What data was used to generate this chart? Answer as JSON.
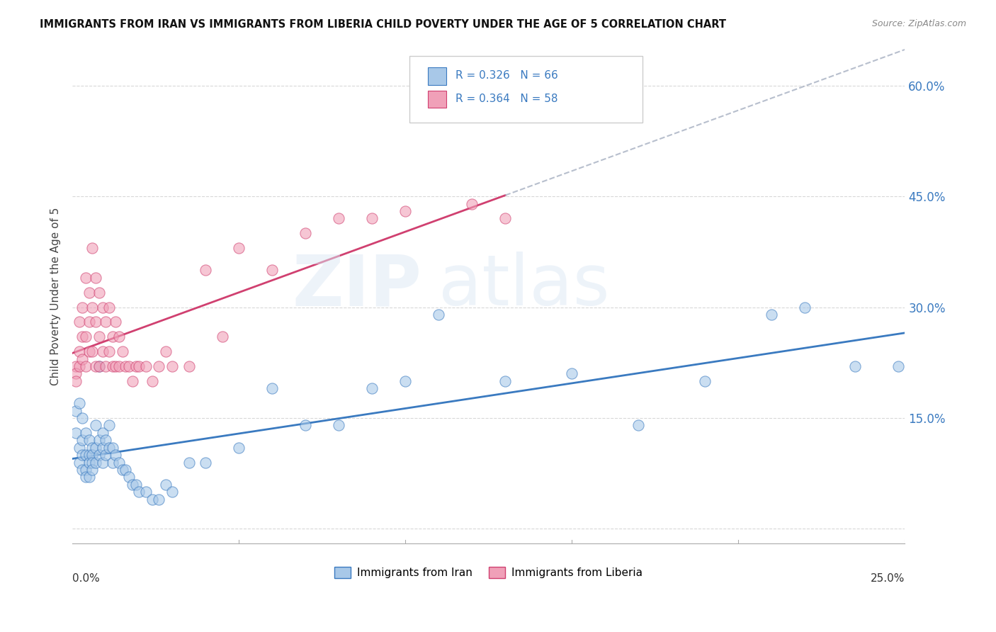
{
  "title": "IMMIGRANTS FROM IRAN VS IMMIGRANTS FROM LIBERIA CHILD POVERTY UNDER THE AGE OF 5 CORRELATION CHART",
  "source": "Source: ZipAtlas.com",
  "ylabel": "Child Poverty Under the Age of 5",
  "y_ticks": [
    0.0,
    0.15,
    0.3,
    0.45,
    0.6
  ],
  "y_tick_labels": [
    "",
    "15.0%",
    "30.0%",
    "45.0%",
    "60.0%"
  ],
  "x_lim": [
    0.0,
    0.25
  ],
  "y_lim": [
    -0.02,
    0.65
  ],
  "legend_iran": "Immigrants from Iran",
  "legend_liberia": "Immigrants from Liberia",
  "R_iran": "0.326",
  "N_iran": "66",
  "R_liberia": "0.364",
  "N_liberia": "58",
  "color_iran": "#a8c8e8",
  "color_liberia": "#f0a0b8",
  "color_iran_line": "#3a7ac0",
  "color_liberia_line": "#d04070",
  "color_dashed": "#b0b8c8",
  "watermark_zip": "ZIP",
  "watermark_atlas": "atlas",
  "iran_x": [
    0.001,
    0.001,
    0.002,
    0.002,
    0.002,
    0.003,
    0.003,
    0.003,
    0.003,
    0.004,
    0.004,
    0.004,
    0.004,
    0.005,
    0.005,
    0.005,
    0.005,
    0.006,
    0.006,
    0.006,
    0.006,
    0.007,
    0.007,
    0.007,
    0.008,
    0.008,
    0.008,
    0.009,
    0.009,
    0.009,
    0.01,
    0.01,
    0.011,
    0.011,
    0.012,
    0.012,
    0.013,
    0.014,
    0.015,
    0.016,
    0.017,
    0.018,
    0.019,
    0.02,
    0.022,
    0.024,
    0.026,
    0.028,
    0.03,
    0.035,
    0.04,
    0.05,
    0.06,
    0.07,
    0.08,
    0.09,
    0.1,
    0.11,
    0.13,
    0.15,
    0.17,
    0.19,
    0.21,
    0.22,
    0.235,
    0.248
  ],
  "iran_y": [
    0.16,
    0.13,
    0.17,
    0.11,
    0.09,
    0.15,
    0.12,
    0.1,
    0.08,
    0.13,
    0.1,
    0.08,
    0.07,
    0.12,
    0.1,
    0.09,
    0.07,
    0.11,
    0.1,
    0.09,
    0.08,
    0.14,
    0.11,
    0.09,
    0.22,
    0.12,
    0.1,
    0.13,
    0.11,
    0.09,
    0.12,
    0.1,
    0.14,
    0.11,
    0.11,
    0.09,
    0.1,
    0.09,
    0.08,
    0.08,
    0.07,
    0.06,
    0.06,
    0.05,
    0.05,
    0.04,
    0.04,
    0.06,
    0.05,
    0.09,
    0.09,
    0.11,
    0.19,
    0.14,
    0.14,
    0.19,
    0.2,
    0.29,
    0.2,
    0.21,
    0.14,
    0.2,
    0.29,
    0.3,
    0.22,
    0.22
  ],
  "liberia_x": [
    0.001,
    0.001,
    0.001,
    0.002,
    0.002,
    0.002,
    0.003,
    0.003,
    0.003,
    0.004,
    0.004,
    0.004,
    0.005,
    0.005,
    0.005,
    0.006,
    0.006,
    0.006,
    0.007,
    0.007,
    0.007,
    0.008,
    0.008,
    0.008,
    0.009,
    0.009,
    0.01,
    0.01,
    0.011,
    0.011,
    0.012,
    0.012,
    0.013,
    0.013,
    0.014,
    0.014,
    0.015,
    0.016,
    0.017,
    0.018,
    0.019,
    0.02,
    0.022,
    0.024,
    0.026,
    0.028,
    0.03,
    0.035,
    0.04,
    0.045,
    0.05,
    0.06,
    0.07,
    0.08,
    0.09,
    0.1,
    0.12,
    0.13
  ],
  "liberia_y": [
    0.22,
    0.21,
    0.2,
    0.28,
    0.24,
    0.22,
    0.3,
    0.26,
    0.23,
    0.34,
    0.26,
    0.22,
    0.32,
    0.28,
    0.24,
    0.38,
    0.3,
    0.24,
    0.34,
    0.28,
    0.22,
    0.32,
    0.26,
    0.22,
    0.3,
    0.24,
    0.28,
    0.22,
    0.3,
    0.24,
    0.26,
    0.22,
    0.28,
    0.22,
    0.26,
    0.22,
    0.24,
    0.22,
    0.22,
    0.2,
    0.22,
    0.22,
    0.22,
    0.2,
    0.22,
    0.24,
    0.22,
    0.22,
    0.35,
    0.26,
    0.38,
    0.35,
    0.4,
    0.42,
    0.42,
    0.43,
    0.44,
    0.42
  ]
}
